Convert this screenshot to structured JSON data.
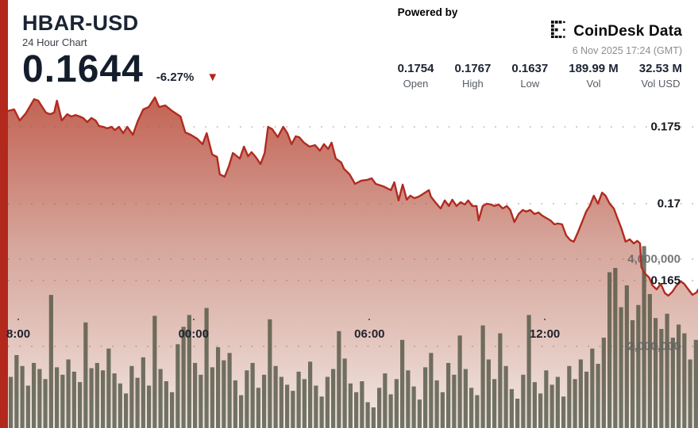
{
  "header": {
    "title": "HBAR-USD",
    "subtitle": "24 Hour Chart",
    "price": "0.1644",
    "change_percent": "-6.27%"
  },
  "icons": {
    "down_arrow": "▼",
    "coindesk_mark": "coindesk-dot-matrix-e"
  },
  "branding": {
    "powered_by": "Powered by",
    "brand": "CoinDesk Data",
    "timestamp": "6 Nov 2025 17:24 (GMT)"
  },
  "stats": [
    {
      "value": "0.1754",
      "label": "Open"
    },
    {
      "value": "0.1767",
      "label": "High"
    },
    {
      "value": "0.1637",
      "label": "Low"
    },
    {
      "value": "189.99 M",
      "label": "Vol"
    },
    {
      "value": "32.53 M",
      "label": "Vol USD"
    }
  ],
  "colors": {
    "accent_red": "#b2281d",
    "line_red": "#b12b20",
    "fill_top": "#b5412f",
    "fill_mid": "#cf978a",
    "fill_bottom": "#f2e9e5",
    "volume_bar": "rgba(77,82,64,0.78)",
    "grid_dot": "#8a6458",
    "navy_text": "#1b2433"
  },
  "chart_data": {
    "type": "area",
    "title": "HBAR-USD 24 Hour Chart",
    "legend": "none",
    "grid": "dotted-horizontal",
    "price_axis": {
      "side": "right",
      "range": [
        0.16041,
        0.17758
      ],
      "ticks": [
        {
          "label": "0.175",
          "value": 0.175
        },
        {
          "label": "0.17",
          "value": 0.17
        },
        {
          "label": "0.165",
          "value": 0.165
        }
      ]
    },
    "volume_axis": {
      "side": "right",
      "range_shown": [
        2000000,
        4000000
      ],
      "ticks": [
        {
          "label": "4,000,000",
          "value": 4000000
        },
        {
          "label": "2,000,000",
          "value": 2000000
        }
      ]
    },
    "x_axis": {
      "ticks": [
        {
          "label": "8:00",
          "fx": 0.015
        },
        {
          "label": "00:00",
          "fx": 0.269
        },
        {
          "label": "06:00",
          "fx": 0.524
        },
        {
          "label": "12:00",
          "fx": 0.778
        }
      ]
    },
    "price_series": {
      "name": "HBAR-USD price",
      "points_fx_price": [
        [
          0.0,
          0.17603
        ],
        [
          0.009,
          0.17613
        ],
        [
          0.017,
          0.17541
        ],
        [
          0.026,
          0.17588
        ],
        [
          0.038,
          0.1768
        ],
        [
          0.044,
          0.1767
        ],
        [
          0.049,
          0.17634
        ],
        [
          0.055,
          0.17593
        ],
        [
          0.061,
          0.17582
        ],
        [
          0.067,
          0.17593
        ],
        [
          0.071,
          0.1767
        ],
        [
          0.078,
          0.17541
        ],
        [
          0.086,
          0.17582
        ],
        [
          0.092,
          0.17567
        ],
        [
          0.098,
          0.17577
        ],
        [
          0.104,
          0.17567
        ],
        [
          0.109,
          0.17557
        ],
        [
          0.115,
          0.17531
        ],
        [
          0.121,
          0.17557
        ],
        [
          0.127,
          0.17541
        ],
        [
          0.132,
          0.17505
        ],
        [
          0.138,
          0.175
        ],
        [
          0.144,
          0.1749
        ],
        [
          0.15,
          0.175
        ],
        [
          0.155,
          0.17479
        ],
        [
          0.161,
          0.175
        ],
        [
          0.167,
          0.17459
        ],
        [
          0.173,
          0.175
        ],
        [
          0.181,
          0.17448
        ],
        [
          0.188,
          0.17536
        ],
        [
          0.196,
          0.17613
        ],
        [
          0.204,
          0.17629
        ],
        [
          0.213,
          0.17691
        ],
        [
          0.219,
          0.17629
        ],
        [
          0.228,
          0.17639
        ],
        [
          0.238,
          0.17603
        ],
        [
          0.25,
          0.17567
        ],
        [
          0.257,
          0.17464
        ],
        [
          0.265,
          0.17448
        ],
        [
          0.274,
          0.17423
        ],
        [
          0.282,
          0.17387
        ],
        [
          0.288,
          0.17459
        ],
        [
          0.296,
          0.1732
        ],
        [
          0.303,
          0.17304
        ],
        [
          0.307,
          0.17191
        ],
        [
          0.314,
          0.17175
        ],
        [
          0.32,
          0.17242
        ],
        [
          0.326,
          0.1733
        ],
        [
          0.336,
          0.17294
        ],
        [
          0.342,
          0.17371
        ],
        [
          0.348,
          0.17309
        ],
        [
          0.353,
          0.17335
        ],
        [
          0.359,
          0.17304
        ],
        [
          0.366,
          0.17258
        ],
        [
          0.372,
          0.1733
        ],
        [
          0.377,
          0.175
        ],
        [
          0.383,
          0.17485
        ],
        [
          0.391,
          0.17433
        ],
        [
          0.399,
          0.175
        ],
        [
          0.405,
          0.17459
        ],
        [
          0.411,
          0.17387
        ],
        [
          0.417,
          0.17438
        ],
        [
          0.422,
          0.17433
        ],
        [
          0.429,
          0.17397
        ],
        [
          0.437,
          0.17371
        ],
        [
          0.445,
          0.17381
        ],
        [
          0.452,
          0.17345
        ],
        [
          0.458,
          0.17387
        ],
        [
          0.464,
          0.17356
        ],
        [
          0.469,
          0.17397
        ],
        [
          0.475,
          0.17294
        ],
        [
          0.483,
          0.17268
        ],
        [
          0.487,
          0.17227
        ],
        [
          0.495,
          0.17191
        ],
        [
          0.503,
          0.17129
        ],
        [
          0.512,
          0.1715
        ],
        [
          0.521,
          0.17155
        ],
        [
          0.527,
          0.17165
        ],
        [
          0.533,
          0.17129
        ],
        [
          0.544,
          0.17113
        ],
        [
          0.555,
          0.17088
        ],
        [
          0.56,
          0.17139
        ],
        [
          0.566,
          0.17021
        ],
        [
          0.572,
          0.17124
        ],
        [
          0.578,
          0.17026
        ],
        [
          0.583,
          0.17052
        ],
        [
          0.589,
          0.17036
        ],
        [
          0.595,
          0.17046
        ],
        [
          0.601,
          0.17062
        ],
        [
          0.61,
          0.17088
        ],
        [
          0.613,
          0.17046
        ],
        [
          0.621,
          0.17
        ],
        [
          0.627,
          0.16969
        ],
        [
          0.633,
          0.17021
        ],
        [
          0.639,
          0.16985
        ],
        [
          0.644,
          0.17026
        ],
        [
          0.65,
          0.16985
        ],
        [
          0.656,
          0.1701
        ],
        [
          0.662,
          0.16995
        ],
        [
          0.667,
          0.17021
        ],
        [
          0.673,
          0.16985
        ],
        [
          0.679,
          0.16985
        ],
        [
          0.682,
          0.16892
        ],
        [
          0.688,
          0.16985
        ],
        [
          0.694,
          0.17
        ],
        [
          0.7,
          0.16995
        ],
        [
          0.705,
          0.16985
        ],
        [
          0.711,
          0.16995
        ],
        [
          0.717,
          0.16969
        ],
        [
          0.723,
          0.16985
        ],
        [
          0.728,
          0.16959
        ],
        [
          0.734,
          0.16881
        ],
        [
          0.74,
          0.16933
        ],
        [
          0.746,
          0.16959
        ],
        [
          0.751,
          0.16949
        ],
        [
          0.757,
          0.16959
        ],
        [
          0.763,
          0.16933
        ],
        [
          0.769,
          0.16943
        ],
        [
          0.774,
          0.16923
        ],
        [
          0.78,
          0.16907
        ],
        [
          0.786,
          0.16892
        ],
        [
          0.792,
          0.16866
        ],
        [
          0.797,
          0.16871
        ],
        [
          0.803,
          0.16866
        ],
        [
          0.809,
          0.16794
        ],
        [
          0.815,
          0.16763
        ],
        [
          0.82,
          0.16753
        ],
        [
          0.826,
          0.16814
        ],
        [
          0.832,
          0.16881
        ],
        [
          0.838,
          0.16949
        ],
        [
          0.843,
          0.16985
        ],
        [
          0.849,
          0.17052
        ],
        [
          0.855,
          0.17
        ],
        [
          0.861,
          0.17072
        ],
        [
          0.866,
          0.17052
        ],
        [
          0.872,
          0.17
        ],
        [
          0.878,
          0.16969
        ],
        [
          0.884,
          0.16897
        ],
        [
          0.889,
          0.1684
        ],
        [
          0.895,
          0.16753
        ],
        [
          0.901,
          0.16768
        ],
        [
          0.907,
          0.16742
        ],
        [
          0.912,
          0.16758
        ],
        [
          0.916,
          0.16742
        ],
        [
          0.918,
          0.16588
        ],
        [
          0.923,
          0.16546
        ],
        [
          0.929,
          0.16521
        ],
        [
          0.934,
          0.16469
        ],
        [
          0.94,
          0.16443
        ],
        [
          0.946,
          0.16479
        ],
        [
          0.952,
          0.16418
        ],
        [
          0.957,
          0.16402
        ],
        [
          0.963,
          0.16428
        ],
        [
          0.969,
          0.16469
        ],
        [
          0.975,
          0.16495
        ],
        [
          0.98,
          0.16479
        ],
        [
          0.986,
          0.16443
        ],
        [
          0.992,
          0.16407
        ],
        [
          0.998,
          0.16423
        ],
        [
          1.0,
          0.1644
        ]
      ]
    },
    "volume_series": {
      "name": "Volume",
      "unit": "millions",
      "values": [
        1.3,
        1.8,
        1.55,
        1.1,
        1.62,
        1.48,
        1.25,
        3.18,
        1.52,
        1.35,
        1.7,
        1.42,
        1.18,
        2.55,
        1.5,
        1.62,
        1.45,
        1.95,
        1.38,
        1.15,
        0.92,
        1.55,
        1.28,
        1.75,
        1.1,
        2.7,
        1.48,
        1.2,
        0.95,
        2.05,
        2.45,
        2.72,
        1.62,
        1.35,
        2.88,
        1.52,
        1.98,
        1.68,
        1.85,
        1.22,
        0.88,
        1.45,
        1.62,
        1.05,
        1.35,
        2.62,
        1.55,
        1.3,
        1.12,
        0.98,
        1.42,
        1.25,
        1.65,
        1.1,
        0.85,
        1.3,
        1.48,
        2.35,
        1.72,
        1.15,
        0.95,
        1.2,
        0.72,
        0.6,
        1.05,
        1.38,
        0.9,
        1.25,
        2.15,
        1.45,
        1.08,
        0.78,
        1.52,
        1.85,
        1.22,
        0.95,
        1.62,
        1.35,
        2.25,
        1.48,
        1.05,
        0.88,
        2.48,
        1.7,
        1.25,
        2.3,
        1.55,
        1.02,
        0.8,
        1.35,
        2.72,
        1.18,
        0.92,
        1.45,
        1.12,
        1.3,
        0.85,
        1.55,
        1.25,
        1.7,
        1.42,
        1.95,
        1.6,
        2.2,
        3.7,
        3.8,
        2.9,
        3.4,
        2.6,
        2.95,
        4.3,
        3.2,
        2.65,
        2.4,
        2.75,
        2.2,
        2.5,
        2.3,
        1.7,
        2.15
      ]
    }
  }
}
